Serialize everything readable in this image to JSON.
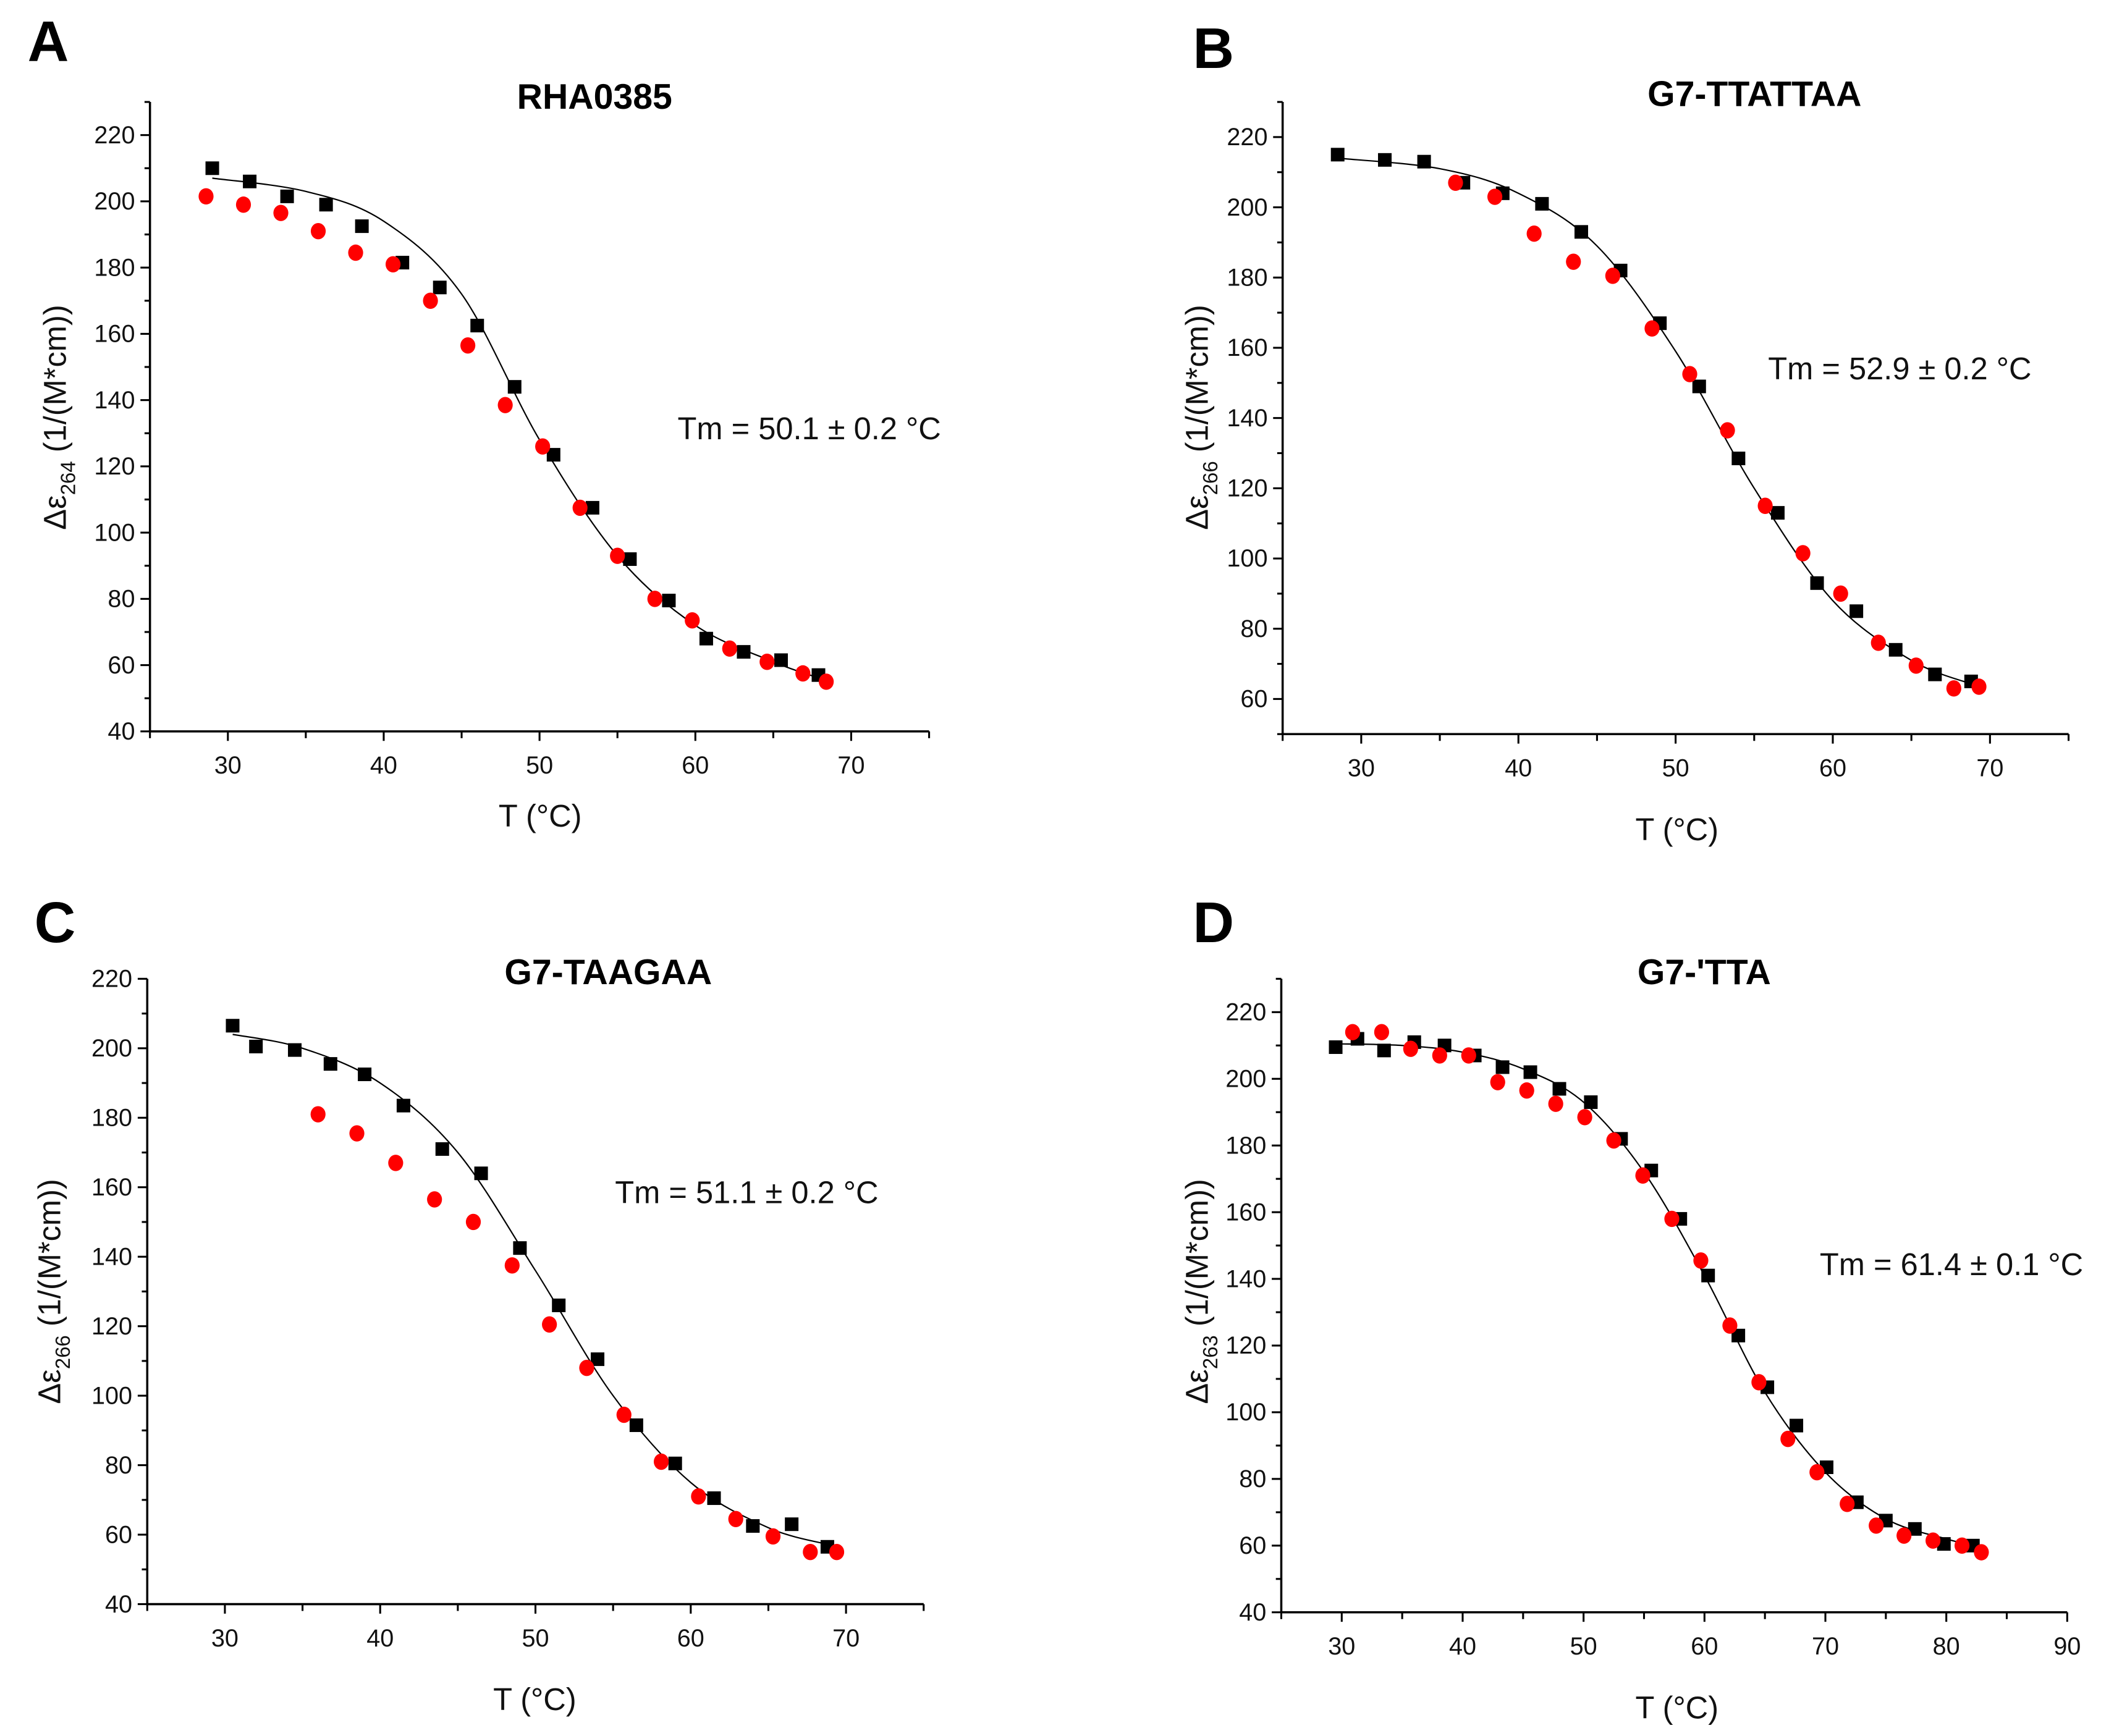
{
  "chart_data": [
    {
      "panel": "A",
      "type": "scatter",
      "title": "RHA0385",
      "xlabel": "T (°C)",
      "xlabel_parts": [
        "T (",
        "o",
        "C)"
      ],
      "ylabel_parts": [
        "Δε",
        "264",
        " (1/(M*cm))"
      ],
      "xlim": [
        25,
        75
      ],
      "ylim": [
        40,
        230
      ],
      "xticks": [
        30,
        40,
        50,
        60,
        70
      ],
      "yticks": [
        40,
        60,
        80,
        100,
        120,
        140,
        160,
        180,
        200,
        220
      ],
      "annotation": "Tm = 50.1 ± 0.2 °C",
      "grid": false,
      "series": [
        {
          "marker": "square",
          "color": "#000000",
          "points": [
            [
              29,
              210
            ],
            [
              31.4,
              206
            ],
            [
              33.8,
              201.5
            ],
            [
              36.3,
              199
            ],
            [
              38.6,
              192.5
            ],
            [
              41.2,
              181.5
            ],
            [
              43.6,
              174
            ],
            [
              46,
              162.5
            ],
            [
              48.4,
              144
            ],
            [
              50.9,
              123.5
            ],
            [
              53.4,
              107.5
            ],
            [
              55.8,
              92
            ],
            [
              58.3,
              79.5
            ],
            [
              60.7,
              68
            ],
            [
              63.1,
              64
            ],
            [
              65.5,
              61.5
            ],
            [
              67.9,
              57
            ]
          ]
        },
        {
          "marker": "circle",
          "color": "#ff0000",
          "points": [
            [
              28.6,
              201.5
            ],
            [
              31,
              199
            ],
            [
              33.4,
              196.5
            ],
            [
              35.8,
              191
            ],
            [
              38.2,
              184.5
            ],
            [
              40.6,
              181
            ],
            [
              43,
              170
            ],
            [
              45.4,
              156.5
            ],
            [
              47.8,
              138.5
            ],
            [
              50.2,
              126
            ],
            [
              52.6,
              107.5
            ],
            [
              55,
              93
            ],
            [
              57.4,
              80
            ],
            [
              59.8,
              73.5
            ],
            [
              62.2,
              65
            ],
            [
              64.6,
              61
            ],
            [
              66.9,
              57.5
            ],
            [
              68.4,
              55
            ]
          ]
        }
      ],
      "fit": [
        [
          29,
          207
        ],
        [
          35,
          203
        ],
        [
          40,
          194
        ],
        [
          45,
          172
        ],
        [
          50,
          128
        ],
        [
          55,
          93
        ],
        [
          60,
          72
        ],
        [
          65,
          61
        ],
        [
          68,
          56
        ]
      ]
    },
    {
      "panel": "B",
      "type": "scatter",
      "title": "G7-TTATTAA",
      "xlabel": "T (°C)",
      "xlabel_parts": [
        "T (",
        "o",
        "C)"
      ],
      "ylabel_parts": [
        "Δε",
        "266",
        " (1/(M*cm))"
      ],
      "xlim": [
        25,
        75
      ],
      "ylim": [
        50,
        230
      ],
      "xticks": [
        30,
        40,
        50,
        60,
        70
      ],
      "yticks": [
        60,
        80,
        100,
        120,
        140,
        160,
        180,
        200,
        220
      ],
      "annotation": "Tm = 52.9 ± 0.2 °C",
      "grid": false,
      "series": [
        {
          "marker": "square",
          "color": "#000000",
          "points": [
            [
              28.5,
              215
            ],
            [
              31.5,
              213.5
            ],
            [
              34,
              213
            ],
            [
              36.5,
              207
            ],
            [
              39,
              204
            ],
            [
              41.5,
              201
            ],
            [
              44,
              193
            ],
            [
              46.5,
              182
            ],
            [
              49,
              167
            ],
            [
              51.5,
              149
            ],
            [
              54,
              128.5
            ],
            [
              56.5,
              113
            ],
            [
              59,
              93
            ],
            [
              61.5,
              85
            ],
            [
              64,
              74
            ],
            [
              66.5,
              67
            ],
            [
              68.8,
              65
            ]
          ]
        },
        {
          "marker": "circle",
          "color": "#ff0000",
          "points": [
            [
              36,
              207
            ],
            [
              38.5,
              203
            ],
            [
              41,
              192.5
            ],
            [
              43.5,
              184.5
            ],
            [
              46,
              180.5
            ],
            [
              48.5,
              165.5
            ],
            [
              50.9,
              152.5
            ],
            [
              53.3,
              136.5
            ],
            [
              55.7,
              115
            ],
            [
              58.1,
              101.5
            ],
            [
              60.5,
              90
            ],
            [
              62.9,
              76
            ],
            [
              65.3,
              69.5
            ],
            [
              67.7,
              63
            ],
            [
              69.3,
              63.5
            ]
          ]
        }
      ],
      "fit": [
        [
          28.5,
          214
        ],
        [
          35,
          211
        ],
        [
          40,
          204
        ],
        [
          45,
          189
        ],
        [
          50,
          159
        ],
        [
          55,
          120
        ],
        [
          60,
          88
        ],
        [
          65,
          71
        ],
        [
          69,
          64
        ]
      ]
    },
    {
      "panel": "C",
      "type": "scatter",
      "title": "G7-TAAGAA",
      "xlabel": "T (°C)",
      "xlabel_parts": [
        "T (",
        "o",
        "C)"
      ],
      "ylabel_parts": [
        "Δε",
        "266",
        " (1/(M*cm))"
      ],
      "xlim": [
        25,
        75
      ],
      "ylim": [
        40,
        220
      ],
      "xticks": [
        30,
        40,
        50,
        60,
        70
      ],
      "yticks": [
        40,
        60,
        80,
        100,
        120,
        140,
        160,
        180,
        200,
        220
      ],
      "annotation": "Tm = 51.1 ± 0.2 °C",
      "grid": false,
      "series": [
        {
          "marker": "square",
          "color": "#000000",
          "points": [
            [
              30.5,
              206.5
            ],
            [
              32,
              200.5
            ],
            [
              34.5,
              199.5
            ],
            [
              36.8,
              195.5
            ],
            [
              39,
              192.5
            ],
            [
              41.5,
              183.5
            ],
            [
              44,
              171
            ],
            [
              46.5,
              164
            ],
            [
              49,
              142.5
            ],
            [
              51.5,
              126
            ],
            [
              54,
              110.5
            ],
            [
              56.5,
              91.5
            ],
            [
              59,
              80.5
            ],
            [
              61.5,
              70.5
            ],
            [
              64,
              62.5
            ],
            [
              66.5,
              63
            ],
            [
              68.8,
              56.5
            ]
          ]
        },
        {
          "marker": "circle",
          "color": "#ff0000",
          "points": [
            [
              36,
              181
            ],
            [
              38.5,
              175.5
            ],
            [
              41,
              167
            ],
            [
              43.5,
              156.5
            ],
            [
              46,
              150
            ],
            [
              48.5,
              137.5
            ],
            [
              50.9,
              120.5
            ],
            [
              53.3,
              108
            ],
            [
              55.7,
              94.5
            ],
            [
              58.1,
              81
            ],
            [
              60.5,
              71
            ],
            [
              62.9,
              64.5
            ],
            [
              65.3,
              59.5
            ],
            [
              67.7,
              55
            ],
            [
              69.4,
              55
            ]
          ]
        }
      ],
      "fit": [
        [
          30.5,
          204
        ],
        [
          35,
          200
        ],
        [
          40,
          190
        ],
        [
          45,
          170
        ],
        [
          50,
          136
        ],
        [
          55,
          100
        ],
        [
          60,
          75
        ],
        [
          65,
          62
        ],
        [
          69,
          57
        ]
      ]
    },
    {
      "panel": "D",
      "type": "scatter",
      "title": "G7-'TTA",
      "xlabel": "T (°C)",
      "xlabel_parts": [
        "T (",
        "o",
        "C)"
      ],
      "ylabel_parts": [
        "Δε",
        "263",
        " (1/(M*cm))"
      ],
      "xlim": [
        25,
        90
      ],
      "ylim": [
        40,
        230
      ],
      "xticks": [
        30,
        40,
        50,
        60,
        70,
        80,
        90
      ],
      "yticks": [
        40,
        60,
        80,
        100,
        120,
        140,
        160,
        180,
        200,
        220
      ],
      "annotation": "Tm = 61.4 ± 0.1 °C",
      "grid": false,
      "series": [
        {
          "marker": "square",
          "color": "#000000",
          "points": [
            [
              29.5,
              209.5
            ],
            [
              31.3,
              212
            ],
            [
              33.5,
              208.5
            ],
            [
              36,
              211
            ],
            [
              38.5,
              210
            ],
            [
              41,
              207
            ],
            [
              43.3,
              203.5
            ],
            [
              45.6,
              202
            ],
            [
              48,
              197
            ],
            [
              50.6,
              193
            ],
            [
              53.1,
              182
            ],
            [
              55.6,
              172.5
            ],
            [
              58,
              158
            ],
            [
              60.3,
              141
            ],
            [
              62.8,
              123
            ],
            [
              65.2,
              107.5
            ],
            [
              67.6,
              96
            ],
            [
              70.1,
              83.5
            ],
            [
              72.6,
              73
            ],
            [
              75,
              67.5
            ],
            [
              77.4,
              65
            ],
            [
              79.8,
              60.5
            ],
            [
              82.2,
              60
            ]
          ]
        },
        {
          "marker": "circle",
          "color": "#ff0000",
          "points": [
            [
              30.9,
              214
            ],
            [
              33.3,
              214
            ],
            [
              35.7,
              209
            ],
            [
              38.1,
              207
            ],
            [
              40.5,
              207
            ],
            [
              42.9,
              199
            ],
            [
              45.3,
              196.5
            ],
            [
              47.7,
              192.5
            ],
            [
              50.1,
              188.5
            ],
            [
              52.5,
              181.5
            ],
            [
              54.9,
              171
            ],
            [
              57.3,
              158
            ],
            [
              59.7,
              145.5
            ],
            [
              62.1,
              126
            ],
            [
              64.5,
              109
            ],
            [
              66.9,
              92
            ],
            [
              69.3,
              82
            ],
            [
              71.8,
              72.5
            ],
            [
              74.2,
              66
            ],
            [
              76.5,
              63
            ],
            [
              78.9,
              61.5
            ],
            [
              81.3,
              60
            ],
            [
              82.9,
              58
            ]
          ]
        }
      ],
      "fit": [
        [
          29.5,
          210.5
        ],
        [
          35,
          210
        ],
        [
          40,
          208
        ],
        [
          45,
          203
        ],
        [
          50,
          193
        ],
        [
          55,
          172
        ],
        [
          60,
          141
        ],
        [
          65,
          106
        ],
        [
          70,
          82
        ],
        [
          75,
          68
        ],
        [
          80,
          62
        ],
        [
          82.5,
          60
        ]
      ]
    }
  ]
}
